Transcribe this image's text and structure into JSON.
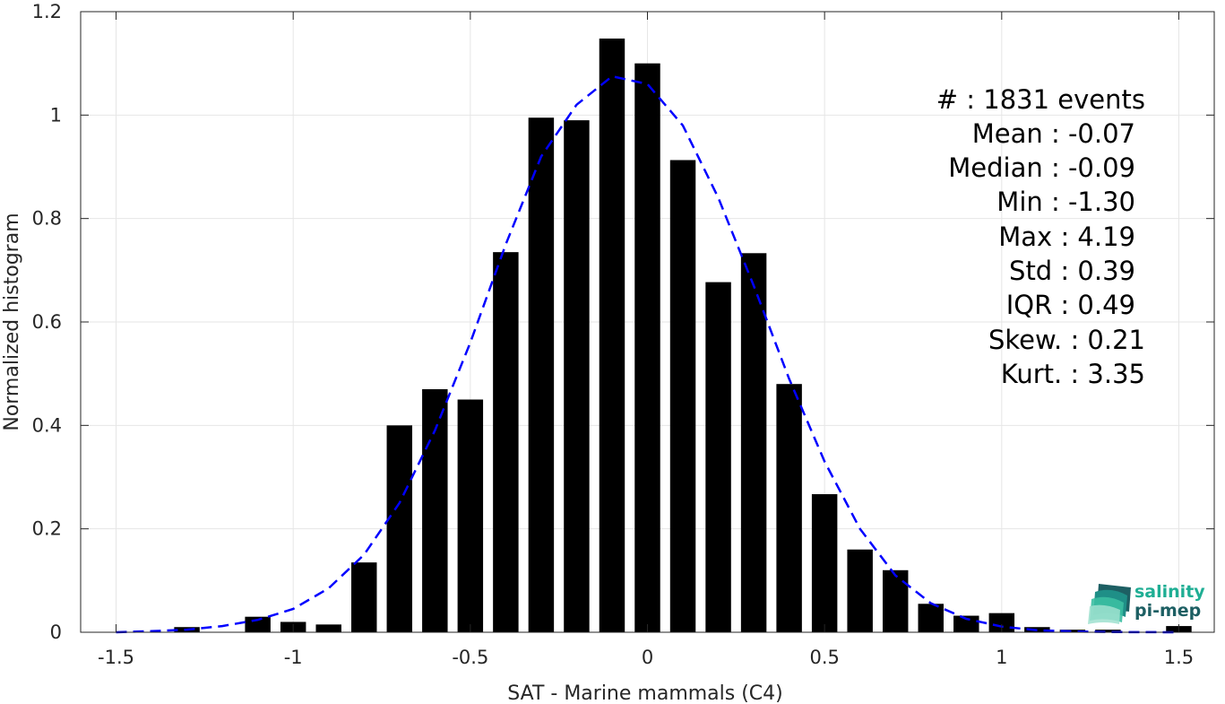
{
  "chart_data": {
    "type": "bar",
    "title": "",
    "xlabel": "SAT - Marine mammals (C4)",
    "ylabel": "Normalized histogram",
    "xlim": [
      -1.6,
      1.6
    ],
    "ylim": [
      0,
      1.2
    ],
    "grid": true,
    "x_ticks": [
      -1.5,
      -1,
      -0.5,
      0,
      0.5,
      1,
      1.5
    ],
    "x_tick_labels": [
      "-1.5",
      "-1",
      "-0.5",
      "0",
      "0.5",
      "1",
      "1.5"
    ],
    "y_ticks": [
      0,
      0.2,
      0.4,
      0.6,
      0.8,
      1,
      1.2
    ],
    "y_tick_labels": [
      "0",
      "0.2",
      "0.4",
      "0.6",
      "0.8",
      "1",
      "1.2"
    ],
    "bar_color": "#000000",
    "bars": {
      "x": [
        -1.3,
        -1.1,
        -1.0,
        -0.9,
        -0.8,
        -0.7,
        -0.6,
        -0.5,
        -0.4,
        -0.3,
        -0.2,
        -0.1,
        0.0,
        0.1,
        0.2,
        0.3,
        0.4,
        0.5,
        0.6,
        0.7,
        0.8,
        0.9,
        1.0,
        1.1,
        1.2,
        1.3,
        1.5
      ],
      "values": [
        0.01,
        0.03,
        0.02,
        0.015,
        0.135,
        0.4,
        0.47,
        0.45,
        0.735,
        0.995,
        0.99,
        1.148,
        1.1,
        0.913,
        0.677,
        0.733,
        0.48,
        0.267,
        0.16,
        0.12,
        0.055,
        0.032,
        0.037,
        0.01,
        0.005,
        0.005,
        0.012
      ]
    },
    "fit_curve": {
      "style": "dashed",
      "color": "#0000ff",
      "x": [
        -1.5,
        -1.4,
        -1.3,
        -1.2,
        -1.1,
        -1.0,
        -0.9,
        -0.8,
        -0.7,
        -0.6,
        -0.5,
        -0.4,
        -0.3,
        -0.2,
        -0.1,
        0.0,
        0.1,
        0.2,
        0.3,
        0.4,
        0.5,
        0.6,
        0.7,
        0.8,
        0.9,
        1.0,
        1.1,
        1.2,
        1.3,
        1.4,
        1.5
      ],
      "y": [
        0.0,
        0.002,
        0.005,
        0.012,
        0.024,
        0.045,
        0.085,
        0.15,
        0.25,
        0.39,
        0.56,
        0.75,
        0.92,
        1.02,
        1.075,
        1.06,
        0.98,
        0.84,
        0.67,
        0.49,
        0.33,
        0.2,
        0.11,
        0.056,
        0.026,
        0.011,
        0.004,
        0.0015,
        0.0005,
        0.0001,
        0.0
      ]
    },
    "stats": [
      "#  : 1831 events",
      "Mean : -0.07",
      "Median : -0.09",
      "Min : -1.30",
      "Max : 4.19",
      "Std : 0.39",
      "IQR : 0.49",
      "Skew. : 0.21",
      "Kurt. : 3.35"
    ],
    "logo": {
      "line1": "salinity",
      "line2": "pi-mep",
      "color1": "#1fae94",
      "color2": "#1d5f63"
    }
  }
}
